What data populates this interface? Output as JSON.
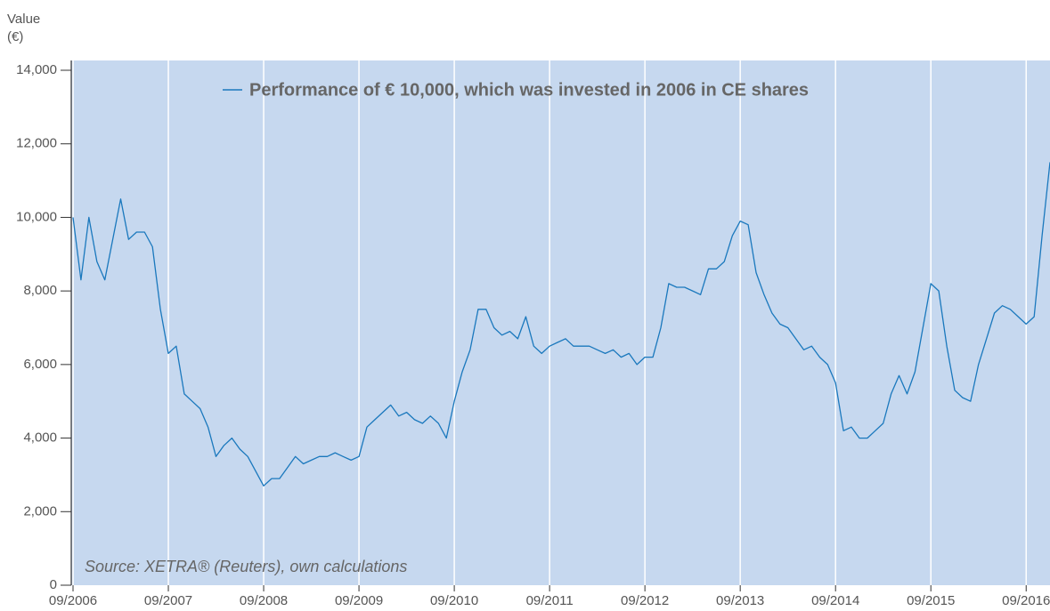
{
  "chart_data": {
    "type": "line",
    "y_label": "Value",
    "y_unit": "(€)",
    "annotation": "Source: XETRA® (Reuters), own calculations",
    "grid": "x",
    "background": "#c6d8ef",
    "xlim": [
      "09/2006",
      "12/2016"
    ],
    "xticks": [
      "09/2006",
      "09/2007",
      "09/2008",
      "09/2009",
      "09/2010",
      "09/2011",
      "09/2012",
      "09/2013",
      "09/2014",
      "09/2015",
      "09/2016"
    ],
    "ylim": [
      0,
      14000
    ],
    "yticks": [
      0,
      {
        "value": 2000,
        "label": "2,000"
      },
      {
        "value": 4000,
        "label": "4,000"
      },
      {
        "value": 6000,
        "label": "6,000"
      },
      {
        "value": 8000,
        "label": "8,000"
      },
      {
        "value": 10000,
        "label": "10,000"
      },
      {
        "value": 12000,
        "label": "12,000"
      },
      {
        "value": 14000,
        "label": "14,000"
      }
    ],
    "x": [
      "09/2006",
      "10/2006",
      "11/2006",
      "12/2006",
      "01/2007",
      "02/2007",
      "03/2007",
      "04/2007",
      "05/2007",
      "06/2007",
      "07/2007",
      "08/2007",
      "09/2007",
      "10/2007",
      "11/2007",
      "12/2007",
      "01/2008",
      "02/2008",
      "03/2008",
      "04/2008",
      "05/2008",
      "06/2008",
      "07/2008",
      "08/2008",
      "09/2008",
      "10/2008",
      "11/2008",
      "12/2008",
      "01/2009",
      "02/2009",
      "03/2009",
      "04/2009",
      "05/2009",
      "06/2009",
      "07/2009",
      "08/2009",
      "09/2009",
      "10/2009",
      "11/2009",
      "12/2009",
      "01/2010",
      "02/2010",
      "03/2010",
      "04/2010",
      "05/2010",
      "06/2010",
      "07/2010",
      "08/2010",
      "09/2010",
      "10/2010",
      "11/2010",
      "12/2010",
      "01/2011",
      "02/2011",
      "03/2011",
      "04/2011",
      "05/2011",
      "06/2011",
      "07/2011",
      "08/2011",
      "09/2011",
      "10/2011",
      "11/2011",
      "12/2011",
      "01/2012",
      "02/2012",
      "03/2012",
      "04/2012",
      "05/2012",
      "06/2012",
      "07/2012",
      "08/2012",
      "09/2012",
      "10/2012",
      "11/2012",
      "12/2012",
      "01/2013",
      "02/2013",
      "03/2013",
      "04/2013",
      "05/2013",
      "06/2013",
      "07/2013",
      "08/2013",
      "09/2013",
      "10/2013",
      "11/2013",
      "12/2013",
      "01/2014",
      "02/2014",
      "03/2014",
      "04/2014",
      "05/2014",
      "06/2014",
      "07/2014",
      "08/2014",
      "09/2014",
      "10/2014",
      "11/2014",
      "12/2014",
      "01/2015",
      "02/2015",
      "03/2015",
      "04/2015",
      "05/2015",
      "06/2015",
      "07/2015",
      "08/2015",
      "09/2015",
      "10/2015",
      "11/2015",
      "12/2015",
      "01/2016",
      "02/2016",
      "03/2016",
      "04/2016",
      "05/2016",
      "06/2016",
      "07/2016",
      "08/2016",
      "09/2016",
      "10/2016",
      "11/2016",
      "12/2016"
    ],
    "series": [
      {
        "name": "Performance of € 10,000, which was invested in 2006 in CE shares",
        "color": "#1a78bd",
        "values": [
          10000,
          8300,
          10000,
          8800,
          8300,
          9400,
          10500,
          9400,
          9600,
          9600,
          9200,
          7500,
          6300,
          6500,
          5200,
          5000,
          4800,
          4300,
          3500,
          3800,
          4000,
          3700,
          3500,
          3100,
          2700,
          2900,
          2900,
          3200,
          3500,
          3300,
          3400,
          3500,
          3500,
          3600,
          3500,
          3400,
          3500,
          4300,
          4500,
          4700,
          4900,
          4600,
          4700,
          4500,
          4400,
          4600,
          4400,
          4000,
          5000,
          5800,
          6400,
          7500,
          7500,
          7000,
          6800,
          6900,
          6700,
          7300,
          6500,
          6300,
          6500,
          6600,
          6700,
          6500,
          6500,
          6500,
          6400,
          6300,
          6400,
          6200,
          6300,
          6000,
          6200,
          6200,
          7000,
          8200,
          8100,
          8100,
          8000,
          7900,
          8600,
          8600,
          8800,
          9500,
          9900,
          9800,
          8500,
          7900,
          7400,
          7100,
          7000,
          6700,
          6400,
          6500,
          6200,
          6000,
          5500,
          4200,
          4300,
          4000,
          4000,
          4200,
          4400,
          5200,
          5700,
          5200,
          5800,
          7000,
          8200,
          8000,
          6500,
          5300,
          5100,
          5000,
          6000,
          6700,
          7400,
          7600,
          7500,
          7300,
          7100,
          7300,
          9500,
          11500
        ]
      }
    ]
  }
}
